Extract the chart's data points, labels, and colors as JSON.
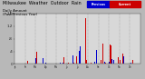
{
  "title": "Milwaukee  Weather  Outdoor  Rain",
  "subtitle": "Daily Amount\n(Past/Previous Year)",
  "bg_color": "#b8b8b8",
  "plot_bg": "#d8d8d8",
  "legend_current_color": "#cc0000",
  "legend_prev_color": "#0000cc",
  "legend_current_label": "Current",
  "legend_prev_label": "Previous",
  "ylim": [
    0,
    1.6
  ],
  "ytick_labels": [
    "0",
    ".4",
    ".8",
    "1.2",
    "1.6"
  ],
  "ytick_vals": [
    0.0,
    0.4,
    0.8,
    1.2,
    1.6
  ],
  "ylabel_fontsize": 3.0,
  "title_fontsize": 3.5,
  "n_days": 365,
  "month_starts": [
    0,
    31,
    59,
    90,
    120,
    151,
    181,
    212,
    243,
    273,
    304,
    334
  ],
  "month_labels": [
    "Jan",
    "Feb",
    "Mar",
    "Apr",
    "May",
    "Jun",
    "Jul",
    "Aug",
    "Sep",
    "Oct",
    "Nov",
    "Dec"
  ]
}
